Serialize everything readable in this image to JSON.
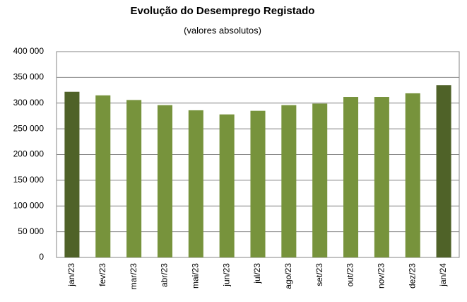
{
  "chart_data": {
    "type": "bar",
    "title": "Evolução do Desemprego Registado",
    "subtitle": "(valores absolutos)",
    "categories": [
      "jan/23",
      "fev/23",
      "mar/23",
      "abr/23",
      "mai/23",
      "jun/23",
      "jul/23",
      "ago/23",
      "set/23",
      "out/23",
      "nov/23",
      "dez/23",
      "jan/24"
    ],
    "values": [
      322000,
      315000,
      306000,
      296000,
      286000,
      278000,
      285000,
      296000,
      299000,
      312000,
      312000,
      319000,
      335000
    ],
    "colors": [
      "#4f6228",
      "#77933c",
      "#77933c",
      "#77933c",
      "#77933c",
      "#77933c",
      "#77933c",
      "#77933c",
      "#77933c",
      "#77933c",
      "#77933c",
      "#77933c",
      "#4f6228"
    ],
    "ylim": [
      0,
      400000
    ],
    "yticks": [
      0,
      {
        "value": 50000,
        "label": "50 000"
      },
      {
        "value": 100000,
        "label": "100 000"
      },
      {
        "value": 150000,
        "label": "150 000"
      },
      {
        "value": 200000,
        "label": "200 000"
      },
      {
        "value": 250000,
        "label": "250 000"
      },
      {
        "value": 300000,
        "label": "300 000"
      },
      {
        "value": 350000,
        "label": "350 000"
      },
      {
        "value": 400000,
        "label": "400 000"
      }
    ],
    "grid": true
  }
}
